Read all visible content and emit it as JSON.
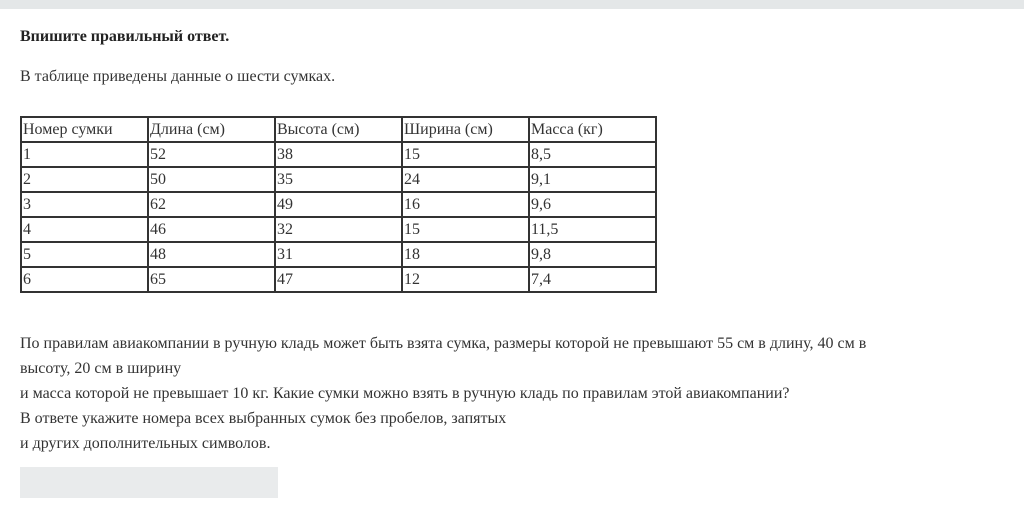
{
  "task": {
    "title": "Впишите правильный ответ.",
    "intro": "В таблице приведены данные о шести сумках.",
    "table": {
      "headers": [
        "Номер сумки",
        "Длина (см)",
        "Высота (см)",
        "Ширина (см)",
        "Масса (кг)"
      ],
      "rows": [
        [
          "1",
          "52",
          "38",
          "15",
          "8,5"
        ],
        [
          "2",
          "50",
          "35",
          "24",
          "9,1"
        ],
        [
          "3",
          "62",
          "49",
          "16",
          "9,6"
        ],
        [
          "4",
          "46",
          "32",
          "15",
          "11,5"
        ],
        [
          "5",
          "48",
          "31",
          "18",
          "9,8"
        ],
        [
          "6",
          "65",
          "47",
          "12",
          "7,4"
        ]
      ]
    },
    "question_lines": [
      "По правилам авиакомпании в ручную кладь может быть взята сумка, размеры которой не превышают 55 см в длину, 40 см в",
      "высоту, 20 см в ширину",
      "и масса которой не превышает 10 кг. Какие сумки можно взять в ручную кладь по правилам этой авиакомпании?",
      "В ответе укажите номера всех выбранных сумок без пробелов, запятых",
      "и других дополнительных символов."
    ],
    "answer_value": ""
  }
}
